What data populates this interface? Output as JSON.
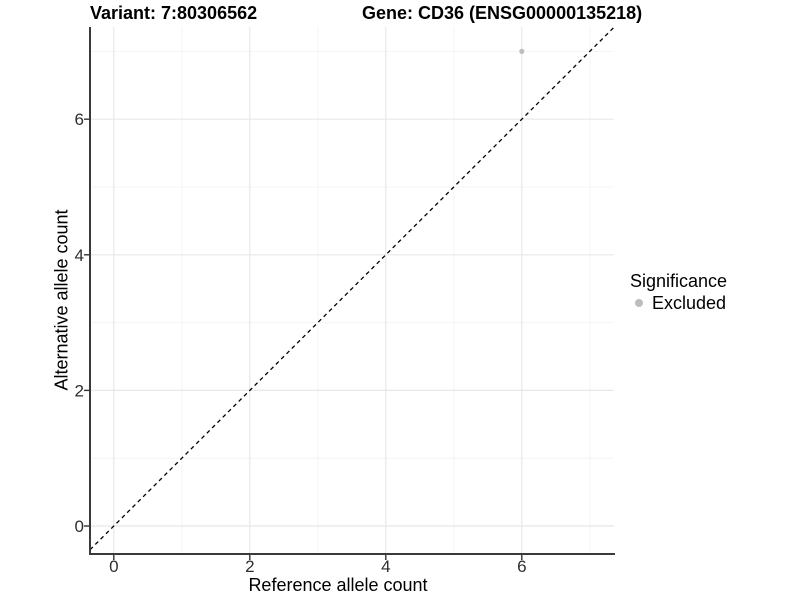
{
  "chart_data": {
    "type": "scatter",
    "title_left": "Variant: 7:80306562",
    "title_right": "Gene: CD36 (ENSG00000135218)",
    "xlabel": "Reference allele count",
    "ylabel": "Alternative allele count",
    "xlim": [
      -0.35,
      7.36
    ],
    "ylim": [
      -0.41,
      7.36
    ],
    "x_ticks": [
      0,
      2,
      4,
      6
    ],
    "y_ticks": [
      0,
      2,
      4,
      6
    ],
    "x_minor_gridlines": [
      1,
      3,
      5,
      7
    ],
    "y_minor_gridlines": [
      1,
      3,
      5,
      7
    ],
    "grid": true,
    "series": [
      {
        "name": "Excluded",
        "color": "#BDBDBD",
        "points": [
          {
            "x": 6,
            "y": 7
          }
        ]
      }
    ],
    "identity_line": {
      "slope": 1,
      "intercept": 0,
      "linetype": "dashed",
      "color": "#000000"
    },
    "legend": {
      "title": "Significance",
      "position": "right",
      "items": [
        {
          "label": "Excluded",
          "color": "#BDBDBD",
          "marker": "circle"
        }
      ]
    },
    "colors": {
      "background": "#FFFFFF",
      "grid_major": "#E8E8E8",
      "grid_minor": "#F4F4F4",
      "axis_line": "#3A3A3A",
      "tick_mark": "#333333",
      "tick_text": "#2E2E2E",
      "point": "#BDBDBD"
    }
  }
}
